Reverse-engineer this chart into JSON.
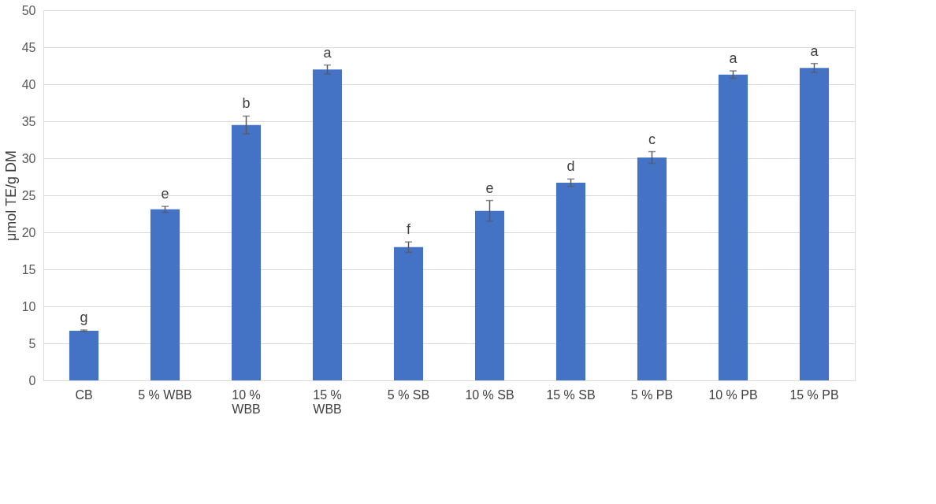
{
  "chart_data": {
    "type": "bar",
    "ylabel": "μmol TE/g DM",
    "categories": [
      "CB",
      "5 % WBB",
      "10 % WBB",
      "15 % WBB",
      "5 % SB",
      "10 % SB",
      "15 % SB",
      "5 % PB",
      "10 % PB",
      "15 % PB"
    ],
    "values": [
      6.7,
      23.1,
      34.5,
      42.0,
      18.0,
      22.9,
      26.7,
      30.1,
      41.3,
      42.2
    ],
    "errors": [
      0.1,
      0.4,
      1.2,
      0.6,
      0.7,
      1.4,
      0.5,
      0.8,
      0.5,
      0.6
    ],
    "color": "#4472c4",
    "ylim": [
      0,
      50
    ],
    "yticks": [
      0,
      5,
      10,
      15,
      20,
      25,
      30,
      35,
      40,
      45,
      50
    ],
    "grid": "y",
    "annotations": [
      {
        "text": "g",
        "x": "CB",
        "y": 6.7
      },
      {
        "text": "e",
        "x": "5 % WBB",
        "y": 23.1
      },
      {
        "text": "b",
        "x": "10 % WBB",
        "y": 34.5
      },
      {
        "text": "a",
        "x": "15 % WBB",
        "y": 42.0
      },
      {
        "text": "f",
        "x": "5 % SB",
        "y": 18.0
      },
      {
        "text": "e",
        "x": "10 % SB",
        "y": 22.9
      },
      {
        "text": "d",
        "x": "15 % SB",
        "y": 26.7
      },
      {
        "text": "c",
        "x": "5 % PB",
        "y": 30.1
      },
      {
        "text": "a",
        "x": "10 % PB",
        "y": 41.3
      },
      {
        "text": "a",
        "x": "15 % PB",
        "y": 42.2
      }
    ]
  }
}
